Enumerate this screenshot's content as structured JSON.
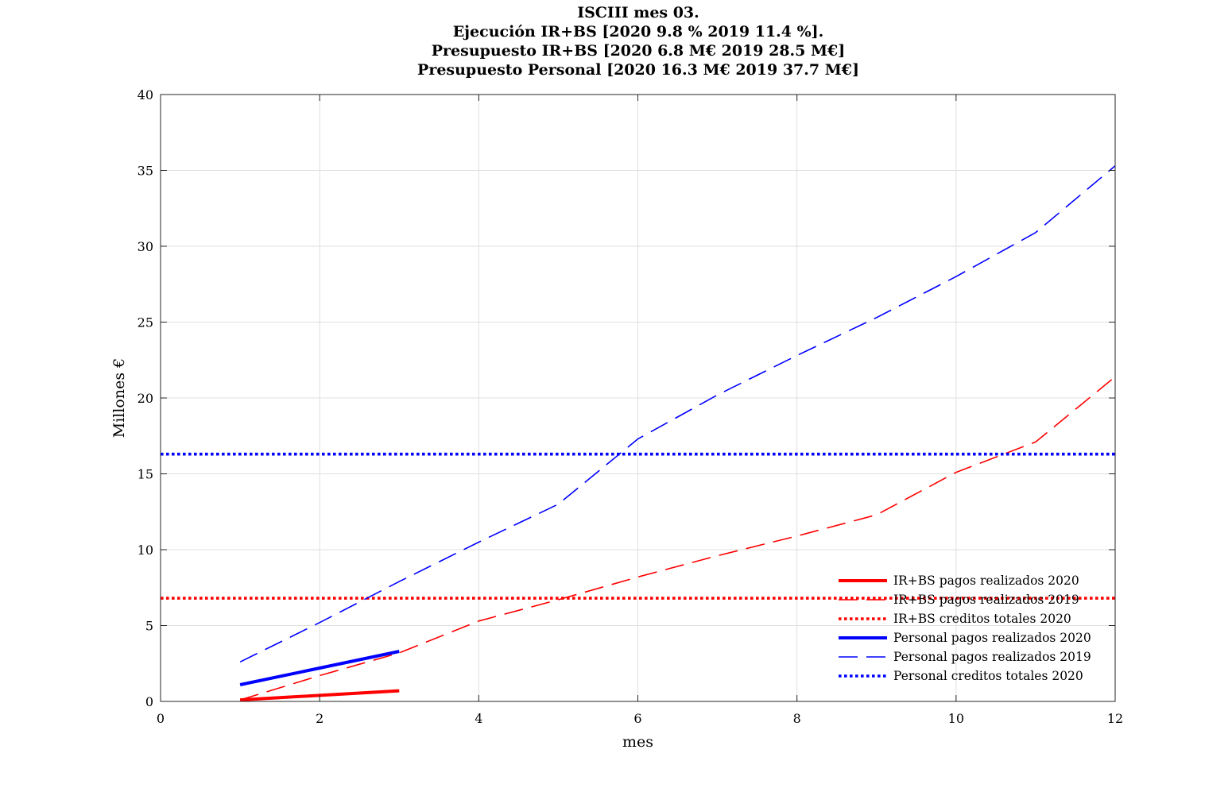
{
  "title_lines": [
    "ISCIII mes 03.",
    "Ejecución IR+BS [2020 9.8 % 2019 11.4 %].",
    "Presupuesto IR+BS [2020 6.8 M€ 2019 28.5 M€]",
    "Presupuesto Personal [2020 16.3 M€ 2019 37.7 M€]"
  ],
  "chart_data": {
    "type": "line",
    "title": "ISCIII mes 03.",
    "xlabel": "mes",
    "ylabel": "Millones €",
    "xlim": [
      0,
      12
    ],
    "ylim": [
      0,
      40
    ],
    "xticks": [
      0,
      2,
      4,
      6,
      8,
      10,
      12
    ],
    "yticks": [
      0,
      5,
      10,
      15,
      20,
      25,
      30,
      35,
      40
    ],
    "grid": true,
    "legend_position": "bottom-right",
    "series": [
      {
        "name": "IR+BS pagos realizados 2020",
        "color": "#ff0000",
        "style": "solid",
        "x": [
          1,
          2,
          3
        ],
        "y": [
          0.1,
          0.4,
          0.7
        ]
      },
      {
        "name": "IR+BS pagos realizados 2019",
        "color": "#ff0000",
        "style": "dashed",
        "x": [
          1,
          2,
          3,
          4,
          5,
          6,
          7,
          8,
          9,
          10,
          11,
          12
        ],
        "y": [
          0.1,
          1.7,
          3.2,
          5.3,
          6.7,
          8.2,
          9.6,
          10.9,
          12.3,
          15.1,
          17.1,
          21.4
        ]
      },
      {
        "name": "IR+BS creditos totales 2020",
        "color": "#ff0000",
        "style": "dotted",
        "x": [
          0,
          12
        ],
        "y": [
          6.8,
          6.8
        ]
      },
      {
        "name": "Personal pagos realizados 2020",
        "color": "#0000ff",
        "style": "solid",
        "x": [
          1,
          2,
          3
        ],
        "y": [
          1.1,
          2.2,
          3.3
        ]
      },
      {
        "name": "Personal pagos realizados 2019",
        "color": "#0000ff",
        "style": "dashed",
        "x": [
          1,
          2,
          3,
          4,
          5,
          6,
          7,
          8,
          9,
          10,
          11,
          12
        ],
        "y": [
          2.6,
          5.2,
          7.9,
          10.5,
          13.0,
          17.3,
          20.2,
          22.8,
          25.3,
          28.0,
          30.9,
          35.3
        ]
      },
      {
        "name": "Personal creditos totales 2020",
        "color": "#0000ff",
        "style": "dotted",
        "x": [
          0,
          12
        ],
        "y": [
          16.3,
          16.3
        ]
      }
    ]
  }
}
